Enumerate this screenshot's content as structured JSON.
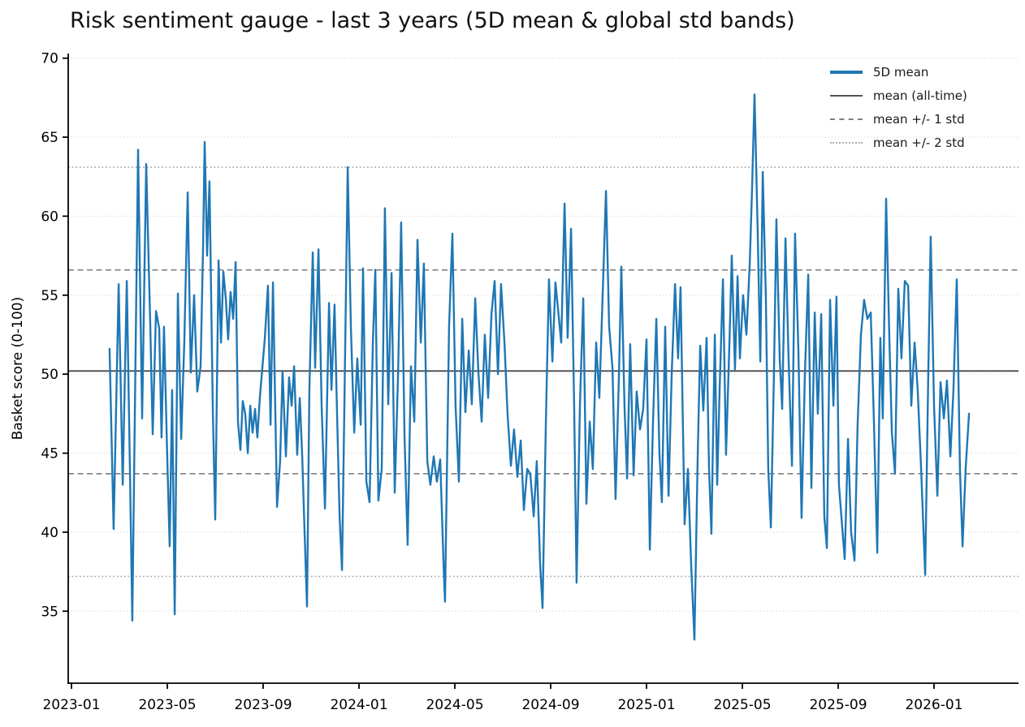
{
  "title": "Risk sentiment gauge - last 3 years (5D mean & global std bands)",
  "axes": {
    "ylabel": "Basket score (0-100)",
    "yticks": [
      35,
      40,
      45,
      50,
      55,
      60,
      65,
      70
    ],
    "xtick_labels": [
      "2023-01",
      "2023-05",
      "2023-09",
      "2024-01",
      "2024-05",
      "2024-09",
      "2025-01",
      "2025-05",
      "2025-09",
      "2026-01"
    ],
    "ylim": [
      30.4,
      70.3
    ]
  },
  "legend": {
    "items": [
      {
        "label": "5D mean",
        "style": "solid-blue"
      },
      {
        "label": "mean (all-time)",
        "style": "solid-gray"
      },
      {
        "label": "mean +/- 1 std",
        "style": "dashed-gray"
      },
      {
        "label": "mean +/- 2 std",
        "style": "dotted-lightgray"
      }
    ],
    "position": "upper right",
    "frame": false
  },
  "colors": {
    "series": "#1f77b4",
    "mean_line": "#545454",
    "std1_line": "#7f7f7f",
    "std2_line": "#ababab",
    "grid": "#d4d4d4",
    "axis": "#000000"
  },
  "chart_data": {
    "type": "line",
    "title": "Risk sentiment gauge - last 3 years (5D mean & global std bands)",
    "xlabel": "",
    "ylabel": "Basket score (0-100)",
    "series_name": "5D mean",
    "x_unit": "months since 2023-01",
    "x_tick_labels": [
      "2023-01",
      "2023-05",
      "2023-09",
      "2024-01",
      "2024-05",
      "2024-09",
      "2025-01",
      "2025-05",
      "2025-09",
      "2026-01"
    ],
    "x_tick_month_offsets": [
      0,
      4,
      8,
      12,
      16,
      20,
      24,
      28,
      32,
      36
    ],
    "ylim": [
      30.4,
      70.3
    ],
    "grid": "horizontal-dotted",
    "legend_position": "upper right",
    "reference_lines": {
      "mean": 50.2,
      "std1_upper": 56.6,
      "std1_lower": 43.7,
      "std2_upper": 63.1,
      "std2_lower": 37.2
    },
    "points": [
      [
        1.59,
        51.6
      ],
      [
        1.76,
        40.2
      ],
      [
        1.97,
        55.7
      ],
      [
        2.14,
        43.0
      ],
      [
        2.31,
        55.9
      ],
      [
        2.44,
        43.9
      ],
      [
        2.54,
        34.4
      ],
      [
        2.78,
        64.2
      ],
      [
        2.88,
        54.0
      ],
      [
        2.95,
        47.2
      ],
      [
        3.12,
        63.3
      ],
      [
        3.29,
        52.9
      ],
      [
        3.39,
        46.2
      ],
      [
        3.53,
        54.0
      ],
      [
        3.66,
        52.9
      ],
      [
        3.76,
        46.0
      ],
      [
        3.86,
        53.0
      ],
      [
        4.0,
        44.6
      ],
      [
        4.1,
        39.1
      ],
      [
        4.2,
        49.0
      ],
      [
        4.31,
        34.8
      ],
      [
        4.44,
        55.1
      ],
      [
        4.58,
        45.9
      ],
      [
        4.71,
        52.0
      ],
      [
        4.85,
        61.5
      ],
      [
        4.98,
        50.1
      ],
      [
        5.12,
        55.0
      ],
      [
        5.25,
        48.9
      ],
      [
        5.39,
        50.5
      ],
      [
        5.49,
        58.0
      ],
      [
        5.56,
        64.7
      ],
      [
        5.66,
        57.5
      ],
      [
        5.76,
        62.2
      ],
      [
        5.9,
        47.5
      ],
      [
        6.0,
        40.8
      ],
      [
        6.14,
        57.2
      ],
      [
        6.24,
        52.0
      ],
      [
        6.34,
        56.5
      ],
      [
        6.44,
        54.8
      ],
      [
        6.54,
        52.2
      ],
      [
        6.64,
        55.2
      ],
      [
        6.75,
        53.5
      ],
      [
        6.85,
        57.1
      ],
      [
        6.95,
        47.0
      ],
      [
        7.05,
        45.2
      ],
      [
        7.15,
        48.3
      ],
      [
        7.25,
        47.5
      ],
      [
        7.36,
        45.0
      ],
      [
        7.46,
        48.0
      ],
      [
        7.56,
        46.3
      ],
      [
        7.66,
        47.8
      ],
      [
        7.76,
        46.0
      ],
      [
        7.86,
        48.5
      ],
      [
        8.07,
        52.3
      ],
      [
        8.2,
        55.6
      ],
      [
        8.31,
        46.8
      ],
      [
        8.41,
        55.8
      ],
      [
        8.58,
        41.6
      ],
      [
        8.71,
        44.5
      ],
      [
        8.81,
        50.2
      ],
      [
        8.95,
        44.8
      ],
      [
        9.08,
        49.8
      ],
      [
        9.19,
        48.0
      ],
      [
        9.29,
        50.5
      ],
      [
        9.42,
        44.9
      ],
      [
        9.53,
        48.5
      ],
      [
        9.63,
        44.8
      ],
      [
        9.73,
        40.0
      ],
      [
        9.83,
        35.3
      ],
      [
        9.93,
        49.0
      ],
      [
        10.07,
        57.7
      ],
      [
        10.17,
        50.4
      ],
      [
        10.31,
        57.9
      ],
      [
        10.44,
        48.0
      ],
      [
        10.58,
        41.5
      ],
      [
        10.75,
        54.5
      ],
      [
        10.85,
        49.0
      ],
      [
        10.98,
        54.4
      ],
      [
        11.08,
        47.7
      ],
      [
        11.19,
        41.0
      ],
      [
        11.29,
        37.6
      ],
      [
        11.39,
        48.0
      ],
      [
        11.53,
        63.1
      ],
      [
        11.66,
        53.0
      ],
      [
        11.8,
        46.3
      ],
      [
        11.93,
        51.0
      ],
      [
        12.07,
        46.8
      ],
      [
        12.17,
        56.7
      ],
      [
        12.31,
        43.2
      ],
      [
        12.44,
        41.9
      ],
      [
        12.58,
        52.0
      ],
      [
        12.68,
        56.6
      ],
      [
        12.81,
        42.0
      ],
      [
        12.95,
        44.0
      ],
      [
        13.08,
        60.5
      ],
      [
        13.22,
        48.1
      ],
      [
        13.36,
        56.4
      ],
      [
        13.49,
        42.5
      ],
      [
        13.63,
        50.0
      ],
      [
        13.76,
        59.6
      ],
      [
        13.9,
        46.0
      ],
      [
        14.03,
        39.2
      ],
      [
        14.17,
        50.5
      ],
      [
        14.31,
        47.0
      ],
      [
        14.44,
        58.5
      ],
      [
        14.58,
        52.0
      ],
      [
        14.71,
        57.0
      ],
      [
        14.85,
        44.5
      ],
      [
        14.98,
        43.0
      ],
      [
        15.12,
        44.8
      ],
      [
        15.25,
        43.2
      ],
      [
        15.39,
        44.6
      ],
      [
        15.53,
        38.0
      ],
      [
        15.59,
        35.6
      ],
      [
        15.76,
        53.0
      ],
      [
        15.9,
        58.9
      ],
      [
        16.03,
        48.0
      ],
      [
        16.17,
        43.2
      ],
      [
        16.31,
        53.5
      ],
      [
        16.44,
        47.6
      ],
      [
        16.58,
        51.5
      ],
      [
        16.71,
        48.1
      ],
      [
        16.85,
        54.8
      ],
      [
        16.98,
        50.2
      ],
      [
        17.12,
        47.0
      ],
      [
        17.25,
        52.5
      ],
      [
        17.39,
        48.5
      ],
      [
        17.53,
        53.8
      ],
      [
        17.66,
        55.9
      ],
      [
        17.8,
        50.0
      ],
      [
        17.93,
        55.7
      ],
      [
        18.07,
        52.0
      ],
      [
        18.2,
        47.5
      ],
      [
        18.34,
        44.2
      ],
      [
        18.47,
        46.5
      ],
      [
        18.61,
        43.5
      ],
      [
        18.75,
        45.8
      ],
      [
        18.88,
        41.4
      ],
      [
        19.02,
        44.0
      ],
      [
        19.15,
        43.7
      ],
      [
        19.29,
        41.0
      ],
      [
        19.42,
        44.5
      ],
      [
        19.56,
        38.0
      ],
      [
        19.66,
        35.2
      ],
      [
        19.8,
        47.0
      ],
      [
        19.93,
        56.0
      ],
      [
        20.07,
        50.8
      ],
      [
        20.2,
        55.8
      ],
      [
        20.44,
        52.0
      ],
      [
        20.58,
        60.8
      ],
      [
        20.71,
        52.3
      ],
      [
        20.85,
        59.2
      ],
      [
        20.98,
        48.0
      ],
      [
        21.08,
        36.8
      ],
      [
        21.22,
        48.0
      ],
      [
        21.36,
        54.8
      ],
      [
        21.49,
        41.8
      ],
      [
        21.63,
        47.0
      ],
      [
        21.76,
        44.0
      ],
      [
        21.9,
        52.0
      ],
      [
        22.03,
        48.5
      ],
      [
        22.17,
        55.0
      ],
      [
        22.31,
        61.6
      ],
      [
        22.44,
        53.0
      ],
      [
        22.58,
        50.4
      ],
      [
        22.71,
        42.1
      ],
      [
        22.85,
        50.0
      ],
      [
        22.95,
        56.8
      ],
      [
        23.08,
        48.0
      ],
      [
        23.19,
        43.4
      ],
      [
        23.32,
        51.9
      ],
      [
        23.46,
        43.6
      ],
      [
        23.59,
        48.9
      ],
      [
        23.73,
        46.5
      ],
      [
        23.86,
        47.8
      ],
      [
        24.0,
        52.2
      ],
      [
        24.14,
        38.9
      ],
      [
        24.27,
        47.0
      ],
      [
        24.41,
        53.5
      ],
      [
        24.54,
        45.0
      ],
      [
        24.64,
        41.9
      ],
      [
        24.78,
        53.0
      ],
      [
        24.92,
        42.3
      ],
      [
        25.05,
        50.0
      ],
      [
        25.19,
        55.7
      ],
      [
        25.32,
        51.0
      ],
      [
        25.42,
        55.5
      ],
      [
        25.59,
        40.5
      ],
      [
        25.73,
        44.0
      ],
      [
        25.86,
        38.0
      ],
      [
        26.0,
        33.2
      ],
      [
        26.14,
        45.0
      ],
      [
        26.24,
        51.8
      ],
      [
        26.37,
        47.7
      ],
      [
        26.51,
        52.3
      ],
      [
        26.61,
        44.0
      ],
      [
        26.71,
        39.9
      ],
      [
        26.85,
        52.5
      ],
      [
        26.95,
        43.0
      ],
      [
        27.05,
        49.0
      ],
      [
        27.19,
        56.0
      ],
      [
        27.32,
        44.9
      ],
      [
        27.46,
        52.0
      ],
      [
        27.56,
        57.5
      ],
      [
        27.69,
        50.3
      ],
      [
        27.8,
        56.2
      ],
      [
        27.9,
        51.0
      ],
      [
        28.03,
        55.0
      ],
      [
        28.17,
        52.5
      ],
      [
        28.31,
        57.0
      ],
      [
        28.41,
        62.0
      ],
      [
        28.51,
        67.7
      ],
      [
        28.64,
        59.0
      ],
      [
        28.75,
        50.8
      ],
      [
        28.85,
        62.8
      ],
      [
        28.98,
        55.0
      ],
      [
        29.08,
        44.0
      ],
      [
        29.19,
        40.3
      ],
      [
        29.32,
        50.0
      ],
      [
        29.42,
        59.8
      ],
      [
        29.56,
        51.0
      ],
      [
        29.66,
        47.8
      ],
      [
        29.8,
        58.6
      ],
      [
        29.93,
        51.0
      ],
      [
        30.07,
        44.2
      ],
      [
        30.2,
        58.9
      ],
      [
        30.34,
        51.5
      ],
      [
        30.47,
        40.9
      ],
      [
        30.61,
        50.0
      ],
      [
        30.75,
        56.3
      ],
      [
        30.88,
        42.8
      ],
      [
        31.02,
        53.9
      ],
      [
        31.15,
        47.5
      ],
      [
        31.29,
        53.8
      ],
      [
        31.42,
        41.0
      ],
      [
        31.53,
        39.0
      ],
      [
        31.66,
        54.7
      ],
      [
        31.8,
        48.0
      ],
      [
        31.93,
        54.9
      ],
      [
        32.03,
        43.0
      ],
      [
        32.27,
        38.3
      ],
      [
        32.41,
        45.9
      ],
      [
        32.54,
        40.0
      ],
      [
        32.68,
        38.2
      ],
      [
        32.81,
        46.8
      ],
      [
        32.95,
        52.5
      ],
      [
        33.08,
        54.7
      ],
      [
        33.22,
        53.5
      ],
      [
        33.36,
        53.9
      ],
      [
        33.49,
        47.0
      ],
      [
        33.63,
        38.7
      ],
      [
        33.76,
        52.3
      ],
      [
        33.86,
        47.2
      ],
      [
        34.0,
        61.1
      ],
      [
        34.14,
        52.0
      ],
      [
        34.24,
        46.3
      ],
      [
        34.37,
        43.7
      ],
      [
        34.51,
        55.4
      ],
      [
        34.64,
        51.0
      ],
      [
        34.78,
        55.9
      ],
      [
        34.92,
        55.6
      ],
      [
        35.05,
        48.0
      ],
      [
        35.19,
        52.0
      ],
      [
        35.32,
        49.0
      ],
      [
        35.46,
        44.0
      ],
      [
        35.63,
        37.3
      ],
      [
        35.76,
        50.0
      ],
      [
        35.86,
        58.7
      ],
      [
        36.0,
        48.0
      ],
      [
        36.14,
        42.3
      ],
      [
        36.27,
        49.5
      ],
      [
        36.41,
        47.2
      ],
      [
        36.54,
        49.6
      ],
      [
        36.68,
        44.8
      ],
      [
        36.81,
        49.0
      ],
      [
        36.95,
        56.0
      ],
      [
        37.08,
        44.0
      ],
      [
        37.19,
        39.1
      ],
      [
        37.32,
        44.0
      ],
      [
        37.46,
        47.5
      ]
    ]
  }
}
